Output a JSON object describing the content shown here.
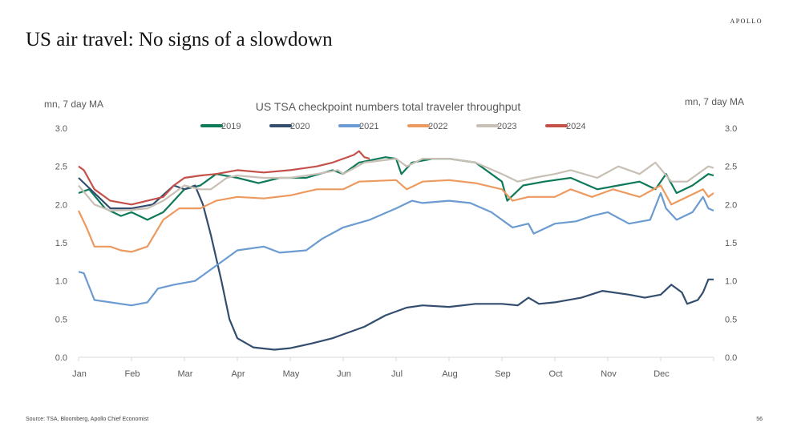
{
  "page": {
    "title": "US air travel: No signs of a slowdown",
    "logo": "APOLLO",
    "source": "Source: TSA, Bloomberg, Apollo Chief Economist",
    "page_number": "56"
  },
  "chart_data": {
    "type": "line",
    "title": "US TSA checkpoint numbers total traveler throughput",
    "ylabel_left": "mn, 7 day MA",
    "ylabel_right": "mn, 7 day MA",
    "ylim": [
      0,
      3.0
    ],
    "yticks": [
      "0.0",
      "0.5",
      "1.0",
      "1.5",
      "2.0",
      "2.5",
      "3.0"
    ],
    "ytick_values": [
      0,
      0.5,
      1,
      1.5,
      2,
      2.5,
      3
    ],
    "xlabel": "",
    "xlim": [
      0,
      12
    ],
    "xticks": [
      "Jan",
      "Feb",
      "Mar",
      "Apr",
      "May",
      "Jun",
      "Jul",
      "Aug",
      "Sep",
      "Oct",
      "Nov",
      "Dec"
    ],
    "x_unit": "months since Jan 1",
    "legend_position": "top",
    "grid": false,
    "series": [
      {
        "name": "2019",
        "color": "#0e7a5a",
        "x": [
          0,
          0.2,
          0.5,
          0.8,
          1.0,
          1.3,
          1.6,
          2.0,
          2.3,
          2.6,
          3.0,
          3.4,
          3.8,
          4.3,
          4.8,
          5.0,
          5.3,
          5.8,
          6.0,
          6.1,
          6.3,
          6.7,
          7.0,
          7.5,
          8.0,
          8.1,
          8.4,
          8.8,
          9.3,
          9.8,
          10.2,
          10.6,
          10.9,
          11.1,
          11.3,
          11.6,
          11.9,
          12
        ],
        "y": [
          2.15,
          2.2,
          1.95,
          1.85,
          1.9,
          1.8,
          1.9,
          2.2,
          2.25,
          2.4,
          2.35,
          2.28,
          2.35,
          2.35,
          2.45,
          2.4,
          2.55,
          2.62,
          2.6,
          2.4,
          2.55,
          2.6,
          2.6,
          2.55,
          2.3,
          2.05,
          2.25,
          2.3,
          2.35,
          2.2,
          2.25,
          2.3,
          2.2,
          2.4,
          2.15,
          2.25,
          2.4,
          2.38
        ]
      },
      {
        "name": "2020",
        "color": "#334d6e",
        "x": [
          0,
          0.3,
          0.6,
          1.0,
          1.4,
          1.8,
          2.0,
          2.2,
          2.35,
          2.5,
          2.7,
          2.85,
          3.0,
          3.3,
          3.7,
          4.0,
          4.4,
          4.8,
          5.0,
          5.4,
          5.8,
          6.2,
          6.5,
          7.0,
          7.5,
          8.0,
          8.3,
          8.5,
          8.7,
          9.0,
          9.5,
          9.9,
          10.4,
          10.7,
          11.0,
          11.2,
          11.4,
          11.5,
          11.7,
          11.8,
          11.9,
          12
        ],
        "y": [
          2.35,
          2.15,
          1.95,
          1.95,
          2.0,
          2.25,
          2.2,
          2.25,
          2.0,
          1.6,
          1.0,
          0.5,
          0.25,
          0.13,
          0.1,
          0.12,
          0.18,
          0.25,
          0.3,
          0.4,
          0.55,
          0.65,
          0.68,
          0.66,
          0.7,
          0.7,
          0.68,
          0.78,
          0.7,
          0.72,
          0.78,
          0.87,
          0.82,
          0.78,
          0.82,
          0.95,
          0.85,
          0.7,
          0.75,
          0.85,
          1.02,
          1.02
        ]
      },
      {
        "name": "2021",
        "color": "#6b9bd0",
        "x": [
          0,
          0.1,
          0.3,
          0.5,
          0.8,
          1.0,
          1.3,
          1.5,
          1.8,
          2.2,
          2.5,
          2.8,
          3.0,
          3.5,
          3.8,
          4.3,
          4.6,
          5.0,
          5.5,
          6.0,
          6.3,
          6.5,
          7.0,
          7.4,
          7.8,
          8.2,
          8.5,
          8.6,
          9.0,
          9.4,
          9.7,
          10.0,
          10.4,
          10.8,
          11.0,
          11.1,
          11.3,
          11.6,
          11.8,
          11.9,
          12
        ],
        "y": [
          1.12,
          1.1,
          0.75,
          0.73,
          0.7,
          0.68,
          0.72,
          0.9,
          0.95,
          1.0,
          1.15,
          1.3,
          1.4,
          1.45,
          1.37,
          1.4,
          1.55,
          1.7,
          1.8,
          1.95,
          2.05,
          2.02,
          2.05,
          2.02,
          1.9,
          1.7,
          1.75,
          1.62,
          1.75,
          1.78,
          1.85,
          1.9,
          1.75,
          1.8,
          2.15,
          1.95,
          1.8,
          1.9,
          2.1,
          1.95,
          1.92
        ]
      },
      {
        "name": "2022",
        "color": "#ec9a5f",
        "x": [
          0,
          0.15,
          0.3,
          0.6,
          0.8,
          1.0,
          1.3,
          1.6,
          1.9,
          2.3,
          2.6,
          3.0,
          3.5,
          4.0,
          4.5,
          5.0,
          5.3,
          6.0,
          6.2,
          6.5,
          7.0,
          7.5,
          8.0,
          8.2,
          8.5,
          9.0,
          9.3,
          9.7,
          10.1,
          10.6,
          11.0,
          11.2,
          11.5,
          11.8,
          11.9,
          12
        ],
        "y": [
          1.92,
          1.7,
          1.45,
          1.45,
          1.4,
          1.38,
          1.45,
          1.8,
          1.95,
          1.95,
          2.05,
          2.1,
          2.08,
          2.12,
          2.2,
          2.2,
          2.3,
          2.32,
          2.2,
          2.3,
          2.32,
          2.28,
          2.2,
          2.05,
          2.1,
          2.1,
          2.2,
          2.1,
          2.2,
          2.1,
          2.25,
          2.0,
          2.1,
          2.2,
          2.1,
          2.15
        ]
      },
      {
        "name": "2023",
        "color": "#c8bfb5",
        "x": [
          0,
          0.3,
          0.6,
          1.0,
          1.3,
          1.6,
          2.0,
          2.3,
          2.5,
          2.8,
          3.0,
          3.5,
          4.0,
          4.5,
          4.9,
          5.0,
          5.4,
          6.0,
          6.2,
          6.5,
          7.0,
          7.5,
          8.0,
          8.3,
          8.6,
          9.0,
          9.3,
          9.8,
          10.2,
          10.6,
          10.9,
          11.2,
          11.5,
          11.8,
          11.9,
          12
        ],
        "y": [
          2.25,
          2.0,
          1.92,
          1.93,
          1.95,
          2.05,
          2.25,
          2.2,
          2.2,
          2.35,
          2.38,
          2.35,
          2.35,
          2.4,
          2.45,
          2.4,
          2.55,
          2.6,
          2.5,
          2.6,
          2.6,
          2.55,
          2.4,
          2.3,
          2.35,
          2.4,
          2.45,
          2.35,
          2.5,
          2.4,
          2.55,
          2.3,
          2.3,
          2.45,
          2.5,
          2.48
        ]
      },
      {
        "name": "2024",
        "color": "#c4504a",
        "x": [
          0,
          0.1,
          0.3,
          0.6,
          1.0,
          1.3,
          1.6,
          1.8,
          2.0,
          2.3,
          2.6,
          3.0,
          3.5,
          4.0,
          4.5,
          4.8,
          5.0,
          5.2,
          5.3,
          5.4,
          5.5
        ],
        "y": [
          2.5,
          2.45,
          2.2,
          2.05,
          2.0,
          2.05,
          2.1,
          2.25,
          2.35,
          2.38,
          2.4,
          2.45,
          2.42,
          2.45,
          2.5,
          2.55,
          2.6,
          2.65,
          2.7,
          2.62,
          2.6
        ]
      }
    ]
  }
}
